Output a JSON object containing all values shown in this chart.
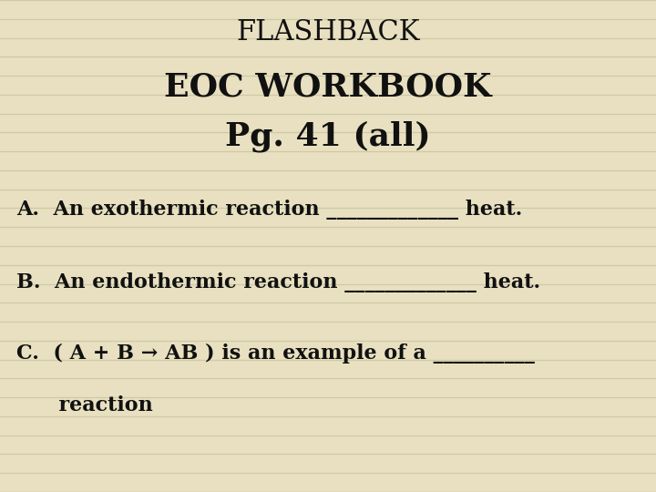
{
  "background_color": "#e8e0c0",
  "line_color": "#c8c4a0",
  "text_color": "#111111",
  "title1": "FLASHBACK",
  "title2": "EOC WORKBOOK",
  "title3": "Pg. 41 (all)",
  "line_A": "A.  An exothermic reaction _____________ heat.",
  "line_B": "B.  An endothermic reaction _____________ heat.",
  "line_C1": "C.  ( A + B → AB ) is an example of a __________",
  "line_C2": "      reaction",
  "title1_fontsize": 22,
  "title2_fontsize": 26,
  "title3_fontsize": 26,
  "body_fontsize": 16,
  "num_lines": 26
}
